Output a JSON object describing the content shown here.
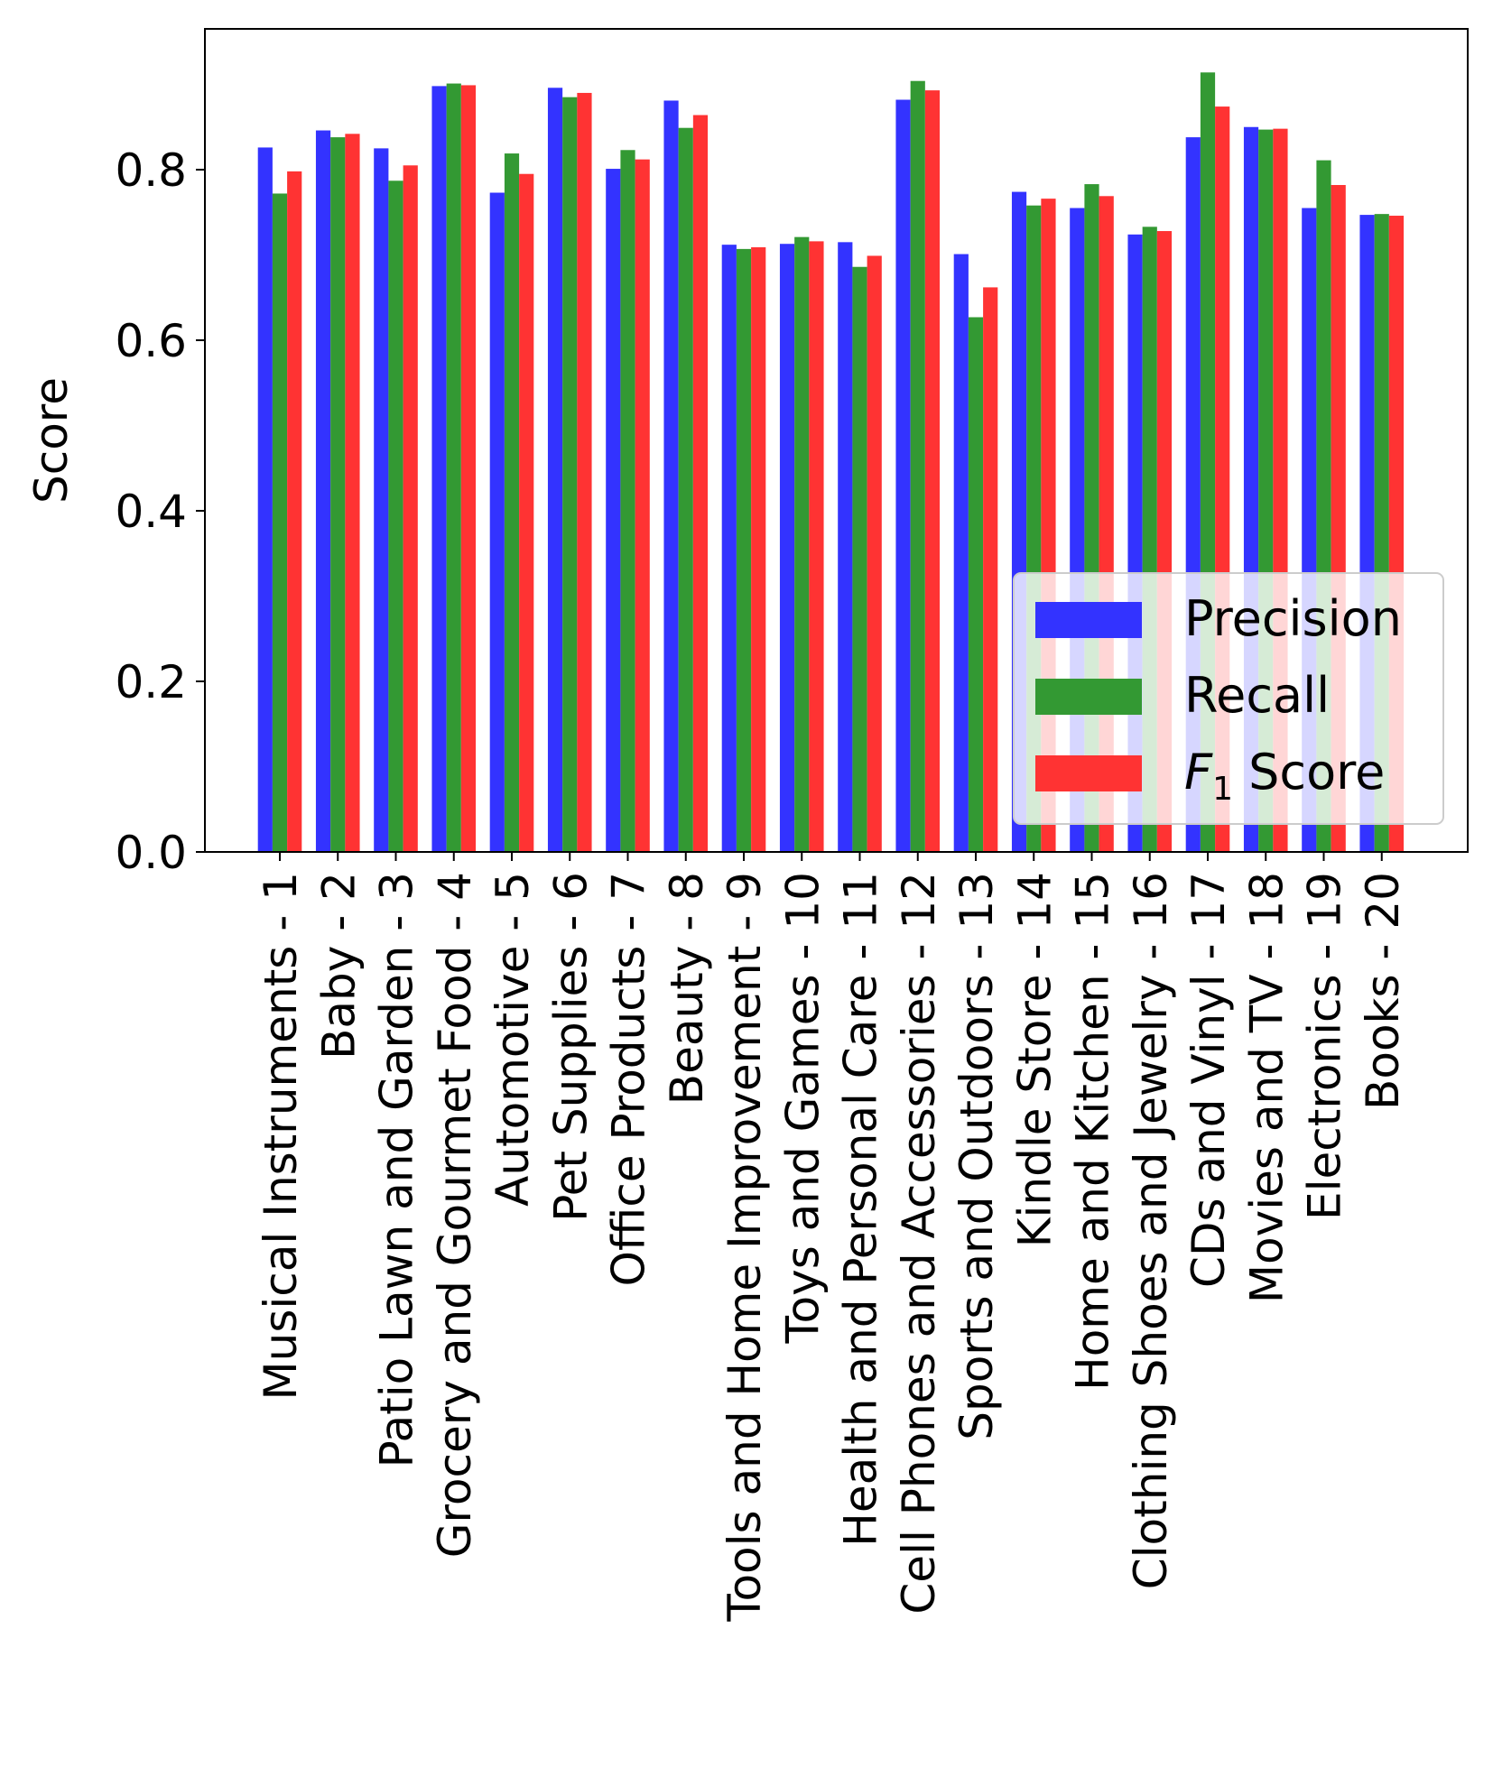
{
  "chart_data": {
    "type": "bar",
    "title": "",
    "xlabel": "",
    "ylabel": "Score",
    "ylim": [
      0,
      0.96
    ],
    "yticks": [
      "0.0",
      "0.2",
      "0.4",
      "0.6",
      "0.8"
    ],
    "grid": false,
    "legend_position": "lower right",
    "categories": [
      "Musical Instruments - 1",
      "Baby - 2",
      "Patio Lawn and Garden - 3",
      "Grocery and Gourmet Food - 4",
      "Automotive - 5",
      "Pet Supplies - 6",
      "Office Products - 7",
      "Beauty - 8",
      "Tools and Home Improvement - 9",
      "Toys and Games - 10",
      "Health and Personal Care - 11",
      "Cell Phones and Accessories - 12",
      "Sports and Outdoors - 13",
      "Kindle Store - 14",
      "Home and Kitchen - 15",
      "Clothing Shoes and Jewelry - 16",
      "CDs and Vinyl - 17",
      "Movies and TV - 18",
      "Electronics - 19",
      "Books - 20"
    ],
    "series": [
      {
        "name": "Precision",
        "color": "#3333ff",
        "values": [
          0.826,
          0.846,
          0.825,
          0.898,
          0.773,
          0.896,
          0.801,
          0.881,
          0.712,
          0.713,
          0.715,
          0.882,
          0.701,
          0.774,
          0.755,
          0.724,
          0.838,
          0.85,
          0.755,
          0.747
        ]
      },
      {
        "name": "Recall",
        "color": "#339933",
        "values": [
          0.772,
          0.838,
          0.787,
          0.901,
          0.819,
          0.885,
          0.823,
          0.849,
          0.707,
          0.721,
          0.686,
          0.904,
          0.627,
          0.758,
          0.783,
          0.733,
          0.914,
          0.847,
          0.811,
          0.748
        ]
      },
      {
        "name": "F1 Score",
        "color": "#ff3333",
        "values": [
          0.798,
          0.842,
          0.805,
          0.899,
          0.795,
          0.89,
          0.812,
          0.864,
          0.709,
          0.716,
          0.699,
          0.893,
          0.662,
          0.766,
          0.769,
          0.728,
          0.874,
          0.848,
          0.782,
          0.746
        ]
      }
    ]
  },
  "legend": {
    "items": [
      {
        "label": "Precision",
        "color": "#3333ff"
      },
      {
        "label": "Recall",
        "color": "#339933"
      },
      {
        "label": "F",
        "subscript": "1",
        "suffix": " Score",
        "color": "#ff3333"
      }
    ]
  }
}
